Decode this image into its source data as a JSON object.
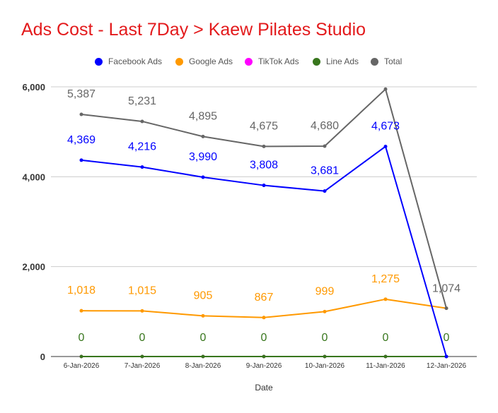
{
  "title": "Ads Cost - Last 7Day > Kaew Pilates Studio",
  "chart_data": {
    "type": "line",
    "title": "Ads Cost - Last 7Day > Kaew Pilates Studio",
    "xlabel": "Date",
    "ylabel": "",
    "categories": [
      "6-Jan-2026",
      "7-Jan-2026",
      "8-Jan-2026",
      "9-Jan-2026",
      "10-Jan-2026",
      "11-Jan-2026",
      "12-Jan-2026"
    ],
    "ylim": [
      0,
      6000
    ],
    "yticks": [
      "0",
      "2,000",
      "4,000",
      "6,000"
    ],
    "ytick_values": [
      0,
      2000,
      4000,
      6000
    ],
    "grid": true,
    "legend_position": "top",
    "series": [
      {
        "name": "Facebook Ads",
        "color": "#0000ff",
        "values": [
          4369,
          4216,
          3990,
          3808,
          3681,
          4673,
          0
        ],
        "labels": [
          "4,369",
          "4,216",
          "3,990",
          "3,808",
          "3,681",
          "4,673",
          ""
        ]
      },
      {
        "name": "Google Ads",
        "color": "#ff9900",
        "values": [
          1018,
          1015,
          905,
          867,
          999,
          1275,
          1074
        ],
        "labels": [
          "1,018",
          "1,015",
          "905",
          "867",
          "999",
          "1,275",
          ""
        ]
      },
      {
        "name": "TikTok Ads",
        "color": "#ff00ff",
        "values": [
          0,
          0,
          0,
          0,
          0,
          0,
          0
        ],
        "labels": [
          "",
          "",
          "",
          "",
          "",
          "",
          ""
        ]
      },
      {
        "name": "Line Ads",
        "color": "#38761d",
        "values": [
          0,
          0,
          0,
          0,
          0,
          0,
          0
        ],
        "labels": [
          "0",
          "0",
          "0",
          "0",
          "0",
          "0",
          "0"
        ]
      },
      {
        "name": "Total",
        "color": "#666666",
        "values": [
          5387,
          5231,
          4895,
          4675,
          4680,
          5948,
          1074
        ],
        "labels": [
          "5,387",
          "5,231",
          "4,895",
          "4,675",
          "4,680",
          "",
          "1,074"
        ]
      }
    ]
  }
}
